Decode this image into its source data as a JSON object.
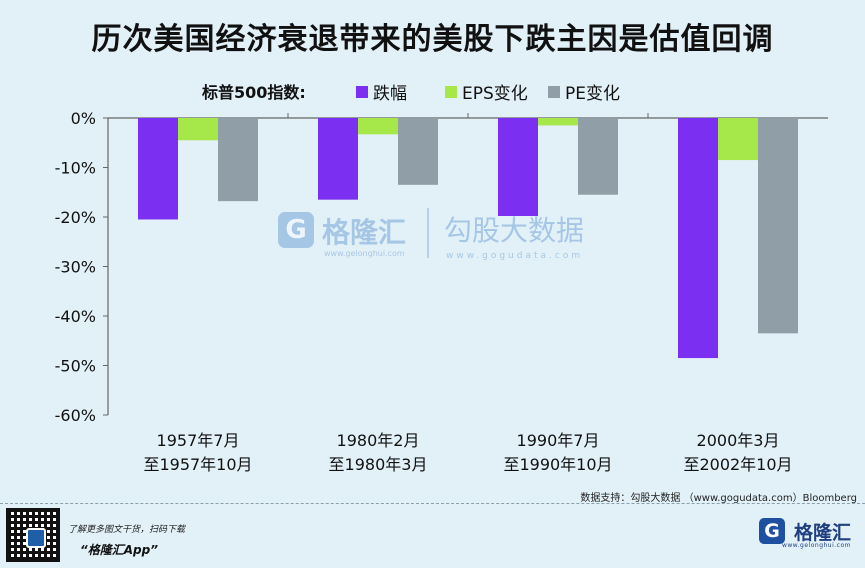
{
  "title": "历次美国经济衰退带来的美股下跌主因是估值回调",
  "colors": {
    "background": "#e2f1f8",
    "series": [
      "#7b2ff0",
      "#a6e84a",
      "#8f9ea7"
    ]
  },
  "watermark": {
    "brand_text": "格隆汇",
    "brand_url": "www.gelonghui.com",
    "data_text": "勾股大数据",
    "data_url": "www.gogudata.com"
  },
  "chart_data": {
    "type": "bar",
    "legend_title": "标普500指数:",
    "legend_position": "top",
    "categories": [
      [
        "1957年7月",
        "至1957年10月"
      ],
      [
        "1980年2月",
        "至1980年3月"
      ],
      [
        "1990年7月",
        "至1990年10月"
      ],
      [
        "2000年3月",
        "至2002年10月"
      ]
    ],
    "series": [
      {
        "name": "跌幅",
        "values": [
          -20.5,
          -16.5,
          -19.8,
          -48.5
        ]
      },
      {
        "name": "EPS变化",
        "values": [
          -4.5,
          -3.3,
          -1.5,
          -8.5
        ]
      },
      {
        "name": "PE变化",
        "values": [
          -16.8,
          -13.5,
          -15.5,
          -43.5
        ]
      }
    ],
    "ylim": [
      -60,
      0
    ],
    "yticks": [
      0,
      -10,
      -20,
      -30,
      -40,
      -50,
      -60
    ],
    "ytick_labels": [
      "0%",
      "-10%",
      "-20%",
      "-30%",
      "-40%",
      "-50%",
      "-60%"
    ],
    "grid": false
  },
  "source": "数据支持：勾股大数据 （www.gogudata.com）Bloomberg",
  "footer": {
    "line1": "了解更多图文干货，扫码下载",
    "line2": "“格隆汇App”",
    "qr_icon": "qr-code-icon",
    "logo_glyph": "G",
    "logo_text": "格隆汇",
    "logo_sub": "www.gelonghui.com"
  }
}
